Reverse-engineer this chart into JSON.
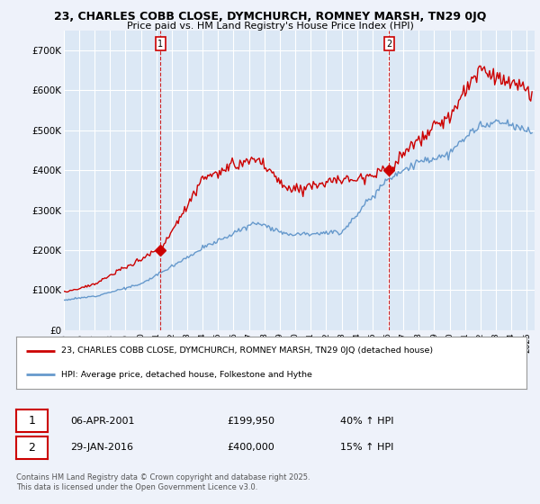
{
  "title_line1": "23, CHARLES COBB CLOSE, DYMCHURCH, ROMNEY MARSH, TN29 0JQ",
  "title_line2": "Price paid vs. HM Land Registry's House Price Index (HPI)",
  "background_color": "#eef2fa",
  "plot_bg_color": "#dce8f5",
  "grid_color": "#ffffff",
  "xlim_start": 1995.0,
  "xlim_end": 2025.5,
  "ylim_min": 0,
  "ylim_max": 750000,
  "yticks": [
    0,
    100000,
    200000,
    300000,
    400000,
    500000,
    600000,
    700000
  ],
  "ytick_labels": [
    "£0",
    "£100K",
    "£200K",
    "£300K",
    "£400K",
    "£500K",
    "£600K",
    "£700K"
  ],
  "purchase_dates": [
    2001.27,
    2016.08
  ],
  "purchase_prices": [
    199950,
    400000
  ],
  "purchase_labels": [
    "1",
    "2"
  ],
  "legend_line1": "23, CHARLES COBB CLOSE, DYMCHURCH, ROMNEY MARSH, TN29 0JQ (detached house)",
  "legend_line2": "HPI: Average price, detached house, Folkestone and Hythe",
  "price_line_color": "#cc0000",
  "hpi_line_color": "#6699cc",
  "annotation_box_color": "#cc0000",
  "annotation1_label": "1",
  "annotation1_date": "06-APR-2001",
  "annotation1_price": "£199,950",
  "annotation1_hpi": "40% ↑ HPI",
  "annotation2_label": "2",
  "annotation2_date": "29-JAN-2016",
  "annotation2_price": "£400,000",
  "annotation2_hpi": "15% ↑ HPI",
  "footer": "Contains HM Land Registry data © Crown copyright and database right 2025.\nThis data is licensed under the Open Government Licence v3.0.",
  "xticks": [
    1995,
    1996,
    1997,
    1998,
    1999,
    2000,
    2001,
    2002,
    2003,
    2004,
    2005,
    2006,
    2007,
    2008,
    2009,
    2010,
    2011,
    2012,
    2013,
    2014,
    2015,
    2016,
    2017,
    2018,
    2019,
    2020,
    2021,
    2022,
    2023,
    2024,
    2025
  ]
}
